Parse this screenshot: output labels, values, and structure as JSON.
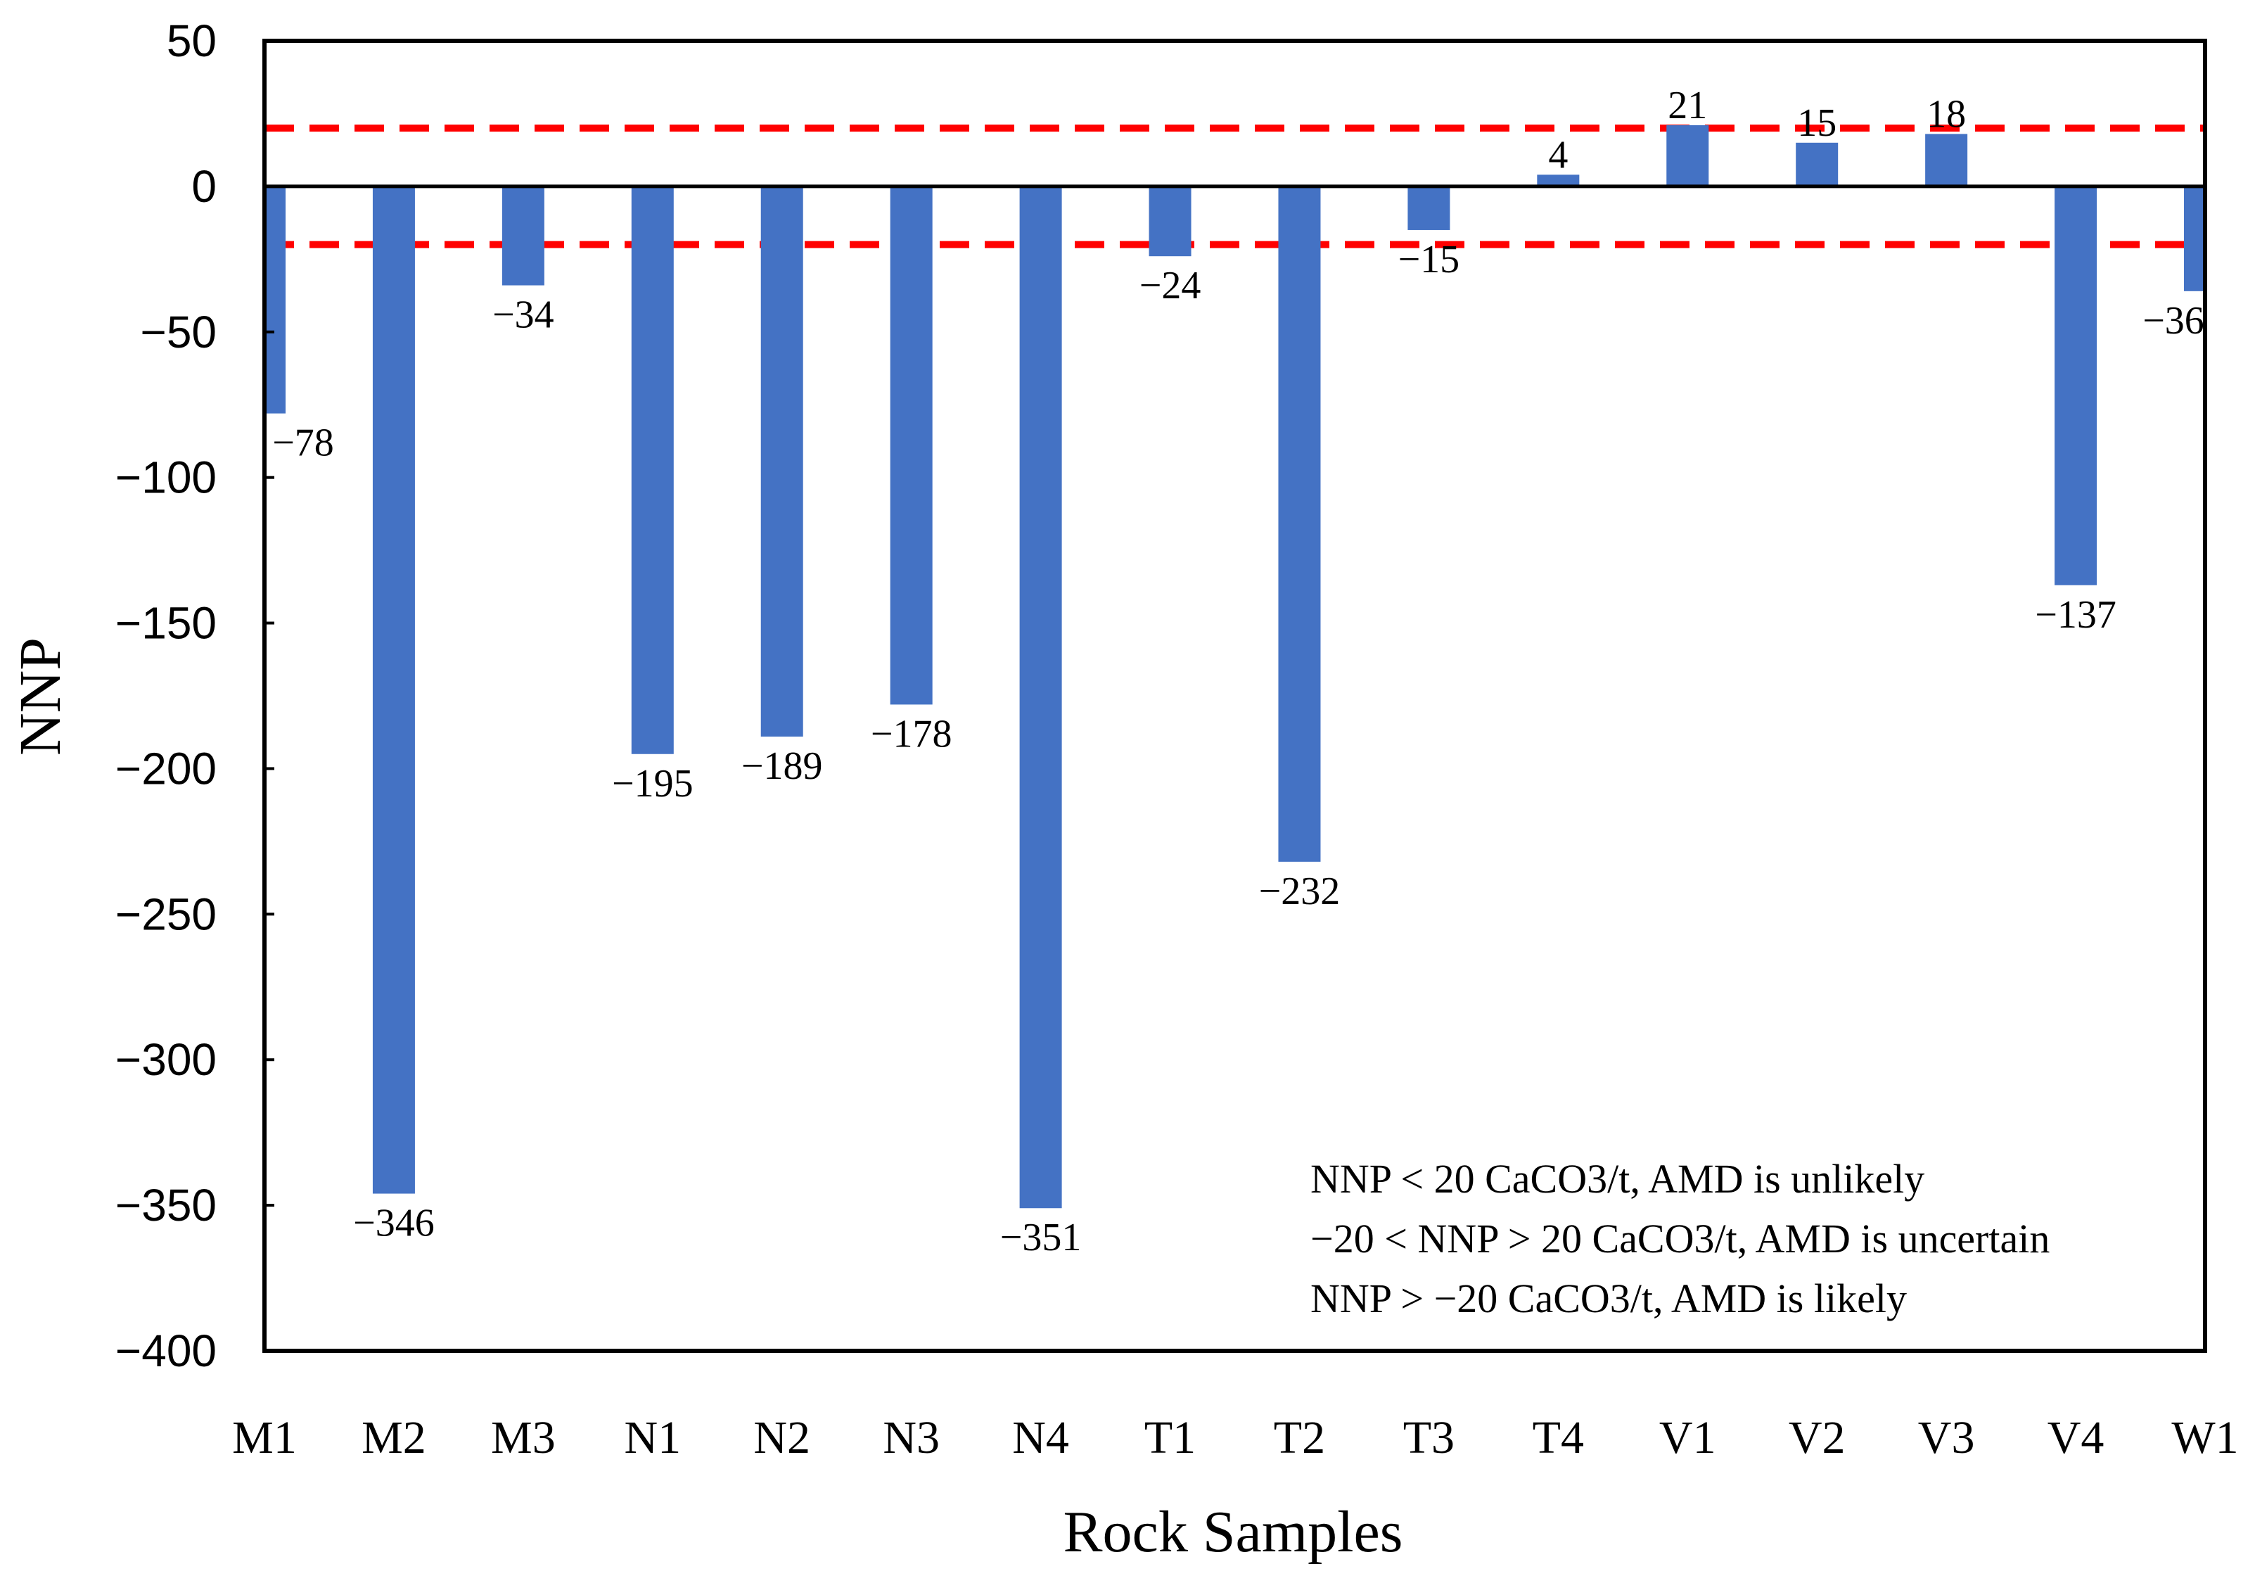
{
  "chart_data": {
    "type": "bar",
    "categories": [
      "M1",
      "M2",
      "M3",
      "N1",
      "N2",
      "N3",
      "N4",
      "T1",
      "T2",
      "T3",
      "T4",
      "V1",
      "V2",
      "V3",
      "V4",
      "W1"
    ],
    "values": [
      -78,
      -346,
      -34,
      -195,
      -189,
      -178,
      -351,
      -24,
      -232,
      -15,
      4,
      21,
      15,
      18,
      -137,
      -36
    ],
    "value_labels": [
      "−78",
      "−346",
      "−34",
      "−195",
      "−189",
      "−178",
      "−351",
      "−24",
      "−232",
      "−15",
      "4",
      "21",
      "15",
      "18",
      "−137",
      "−36"
    ],
    "xlabel": "Rock Samples",
    "ylabel": "NNP",
    "ylim": [
      -400,
      50
    ],
    "yticks": [
      50,
      0,
      -50,
      -100,
      -150,
      -200,
      -250,
      -300,
      -350,
      -400
    ],
    "ytick_labels": [
      "50",
      "0",
      "−50",
      "−100",
      "−150",
      "−200",
      "−250",
      "−300",
      "−350",
      "−400"
    ],
    "threshold_lines": [
      20,
      -20
    ],
    "bar_color": "#4472c4",
    "threshold_color": "#ff0000",
    "legend_placement": "bottom-right",
    "annotations": [
      "NNP < 20 CaCO3/t, AMD is unlikely",
      "−20 < NNP > 20 CaCO3/t, AMD is uncertain",
      "NNP > −20 CaCO3/t, AMD is likely"
    ]
  }
}
